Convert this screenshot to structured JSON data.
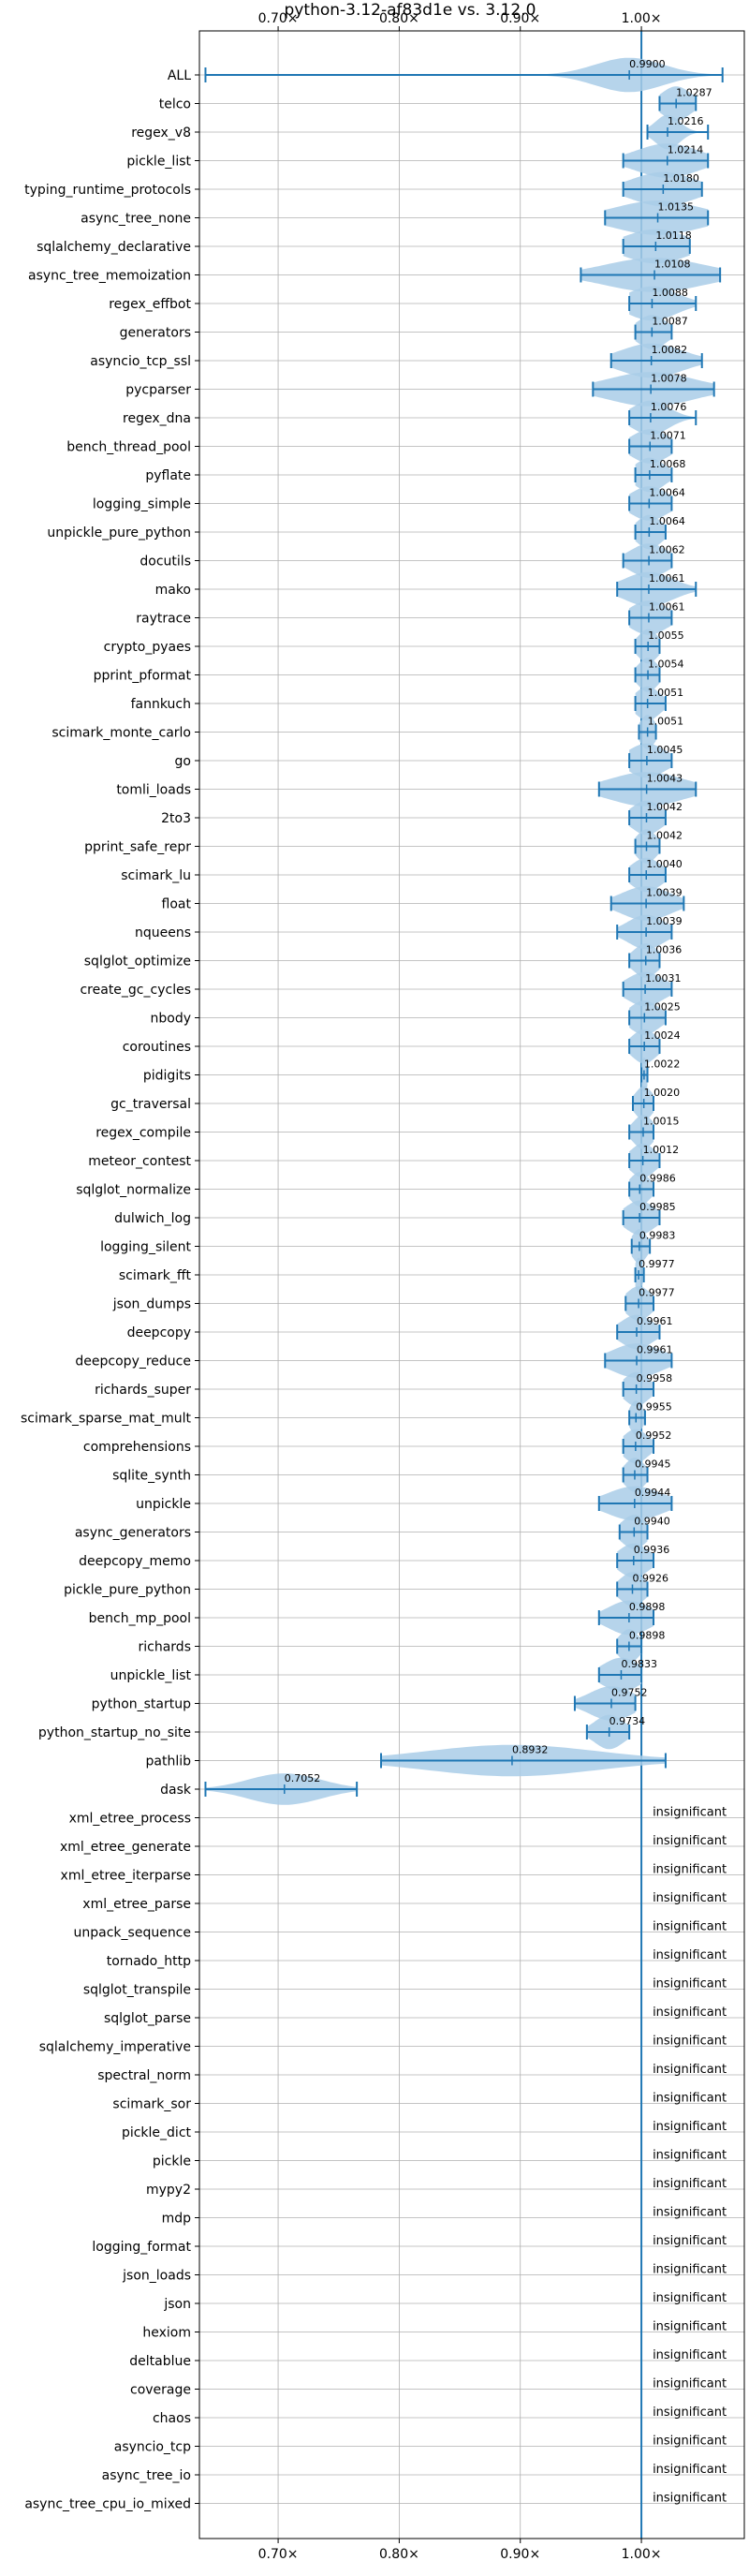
{
  "chart_data": {
    "type": "violin",
    "title": "python-3.12-af83d1e vs. 3.12.0",
    "xlabel": "",
    "ylabel": "",
    "xlim": [
      0.635,
      1.085
    ],
    "xticks": [
      0.7,
      0.8,
      0.9,
      1.0
    ],
    "xtick_labels": [
      "0.70×",
      "0.80×",
      "0.90×",
      "1.00×"
    ],
    "grid": true,
    "reference_line": 1.0,
    "colors": {
      "accent": "#1f77b4",
      "violin_fill": "#a9cce8",
      "grid": "#b0b0b0"
    },
    "insignificant_label": "insignificant",
    "benchmarks": [
      {
        "name": "ALL",
        "value": 0.99,
        "label": "0.9900",
        "min": 0.64,
        "max": 1.067,
        "spread": 0.028,
        "w": 0.6
      },
      {
        "name": "telco",
        "value": 1.0287,
        "label": "1.0287",
        "min": 1.015,
        "max": 1.045,
        "spread": 0.012,
        "w": 0.6
      },
      {
        "name": "regex_v8",
        "value": 1.0216,
        "label": "1.0216",
        "min": 1.005,
        "max": 1.055,
        "spread": 0.01,
        "w": 0.6
      },
      {
        "name": "pickle_list",
        "value": 1.0214,
        "label": "1.0214",
        "min": 0.985,
        "max": 1.055,
        "spread": 0.025,
        "w": 0.6
      },
      {
        "name": "typing_runtime_protocols",
        "value": 1.018,
        "label": "1.0180",
        "min": 0.985,
        "max": 1.05,
        "spread": 0.025,
        "w": 0.6
      },
      {
        "name": "async_tree_none",
        "value": 1.0135,
        "label": "1.0135",
        "min": 0.97,
        "max": 1.055,
        "spread": 0.035,
        "w": 0.6
      },
      {
        "name": "sqlalchemy_declarative",
        "value": 1.0118,
        "label": "1.0118",
        "min": 0.985,
        "max": 1.04,
        "spread": 0.025,
        "w": 0.6
      },
      {
        "name": "async_tree_memoization",
        "value": 1.0108,
        "label": "1.0108",
        "min": 0.95,
        "max": 1.065,
        "spread": 0.04,
        "w": 0.6
      },
      {
        "name": "regex_effbot",
        "value": 1.0088,
        "label": "1.0088",
        "min": 0.99,
        "max": 1.045,
        "spread": 0.02,
        "w": 0.6
      },
      {
        "name": "generators",
        "value": 1.0087,
        "label": "1.0087",
        "min": 0.995,
        "max": 1.025,
        "spread": 0.012,
        "w": 0.6
      },
      {
        "name": "asyncio_tcp_ssl",
        "value": 1.0082,
        "label": "1.0082",
        "min": 0.975,
        "max": 1.05,
        "spread": 0.025,
        "w": 0.6
      },
      {
        "name": "pycparser",
        "value": 1.0078,
        "label": "1.0078",
        "min": 0.96,
        "max": 1.06,
        "spread": 0.035,
        "w": 0.6
      },
      {
        "name": "regex_dna",
        "value": 1.0076,
        "label": "1.0076",
        "min": 0.99,
        "max": 1.045,
        "spread": 0.015,
        "w": 0.6
      },
      {
        "name": "bench_thread_pool",
        "value": 1.0071,
        "label": "1.0071",
        "min": 0.99,
        "max": 1.025,
        "spread": 0.015,
        "w": 0.6
      },
      {
        "name": "pyflate",
        "value": 1.0068,
        "label": "1.0068",
        "min": 0.995,
        "max": 1.025,
        "spread": 0.012,
        "w": 0.6
      },
      {
        "name": "logging_simple",
        "value": 1.0064,
        "label": "1.0064",
        "min": 0.99,
        "max": 1.025,
        "spread": 0.015,
        "w": 0.6
      },
      {
        "name": "unpickle_pure_python",
        "value": 1.0064,
        "label": "1.0064",
        "min": 0.995,
        "max": 1.02,
        "spread": 0.01,
        "w": 0.6
      },
      {
        "name": "docutils",
        "value": 1.0062,
        "label": "1.0062",
        "min": 0.985,
        "max": 1.025,
        "spread": 0.015,
        "w": 0.6
      },
      {
        "name": "mako",
        "value": 1.0061,
        "label": "1.0061",
        "min": 0.98,
        "max": 1.045,
        "spread": 0.02,
        "w": 0.6
      },
      {
        "name": "raytrace",
        "value": 1.0061,
        "label": "1.0061",
        "min": 0.99,
        "max": 1.025,
        "spread": 0.015,
        "w": 0.6
      },
      {
        "name": "crypto_pyaes",
        "value": 1.0055,
        "label": "1.0055",
        "min": 0.995,
        "max": 1.015,
        "spread": 0.008,
        "w": 0.6
      },
      {
        "name": "pprint_pformat",
        "value": 1.0054,
        "label": "1.0054",
        "min": 0.995,
        "max": 1.015,
        "spread": 0.008,
        "w": 0.6
      },
      {
        "name": "fannkuch",
        "value": 1.0051,
        "label": "1.0051",
        "min": 0.995,
        "max": 1.02,
        "spread": 0.01,
        "w": 0.6
      },
      {
        "name": "scimark_monte_carlo",
        "value": 1.0051,
        "label": "1.0051",
        "min": 0.998,
        "max": 1.012,
        "spread": 0.006,
        "w": 0.6
      },
      {
        "name": "go",
        "value": 1.0045,
        "label": "1.0045",
        "min": 0.99,
        "max": 1.025,
        "spread": 0.015,
        "w": 0.6
      },
      {
        "name": "tomli_loads",
        "value": 1.0043,
        "label": "1.0043",
        "min": 0.965,
        "max": 1.045,
        "spread": 0.03,
        "w": 0.6
      },
      {
        "name": "2to3",
        "value": 1.0042,
        "label": "1.0042",
        "min": 0.99,
        "max": 1.02,
        "spread": 0.012,
        "w": 0.6
      },
      {
        "name": "pprint_safe_repr",
        "value": 1.0042,
        "label": "1.0042",
        "min": 0.995,
        "max": 1.015,
        "spread": 0.008,
        "w": 0.6
      },
      {
        "name": "scimark_lu",
        "value": 1.004,
        "label": "1.0040",
        "min": 0.99,
        "max": 1.02,
        "spread": 0.012,
        "w": 0.6
      },
      {
        "name": "float",
        "value": 1.0039,
        "label": "1.0039",
        "min": 0.975,
        "max": 1.035,
        "spread": 0.02,
        "w": 0.6
      },
      {
        "name": "nqueens",
        "value": 1.0039,
        "label": "1.0039",
        "min": 0.98,
        "max": 1.025,
        "spread": 0.015,
        "w": 0.6
      },
      {
        "name": "sqlglot_optimize",
        "value": 1.0036,
        "label": "1.0036",
        "min": 0.99,
        "max": 1.015,
        "spread": 0.01,
        "w": 0.6
      },
      {
        "name": "create_gc_cycles",
        "value": 1.0031,
        "label": "1.0031",
        "min": 0.985,
        "max": 1.025,
        "spread": 0.015,
        "w": 0.6
      },
      {
        "name": "nbody",
        "value": 1.0025,
        "label": "1.0025",
        "min": 0.99,
        "max": 1.02,
        "spread": 0.012,
        "w": 0.6
      },
      {
        "name": "coroutines",
        "value": 1.0024,
        "label": "1.0024",
        "min": 0.99,
        "max": 1.015,
        "spread": 0.01,
        "w": 0.6
      },
      {
        "name": "pidigits",
        "value": 1.0022,
        "label": "1.0022",
        "min": 1.0,
        "max": 1.005,
        "spread": 0.003,
        "w": 0.6
      },
      {
        "name": "gc_traversal",
        "value": 1.002,
        "label": "1.0020",
        "min": 0.993,
        "max": 1.01,
        "spread": 0.007,
        "w": 0.6
      },
      {
        "name": "regex_compile",
        "value": 1.0015,
        "label": "1.0015",
        "min": 0.99,
        "max": 1.01,
        "spread": 0.008,
        "w": 0.6
      },
      {
        "name": "meteor_contest",
        "value": 1.0012,
        "label": "1.0012",
        "min": 0.99,
        "max": 1.015,
        "spread": 0.01,
        "w": 0.6
      },
      {
        "name": "sqlglot_normalize",
        "value": 0.9986,
        "label": "0.9986",
        "min": 0.99,
        "max": 1.01,
        "spread": 0.008,
        "w": 0.6
      },
      {
        "name": "dulwich_log",
        "value": 0.9985,
        "label": "0.9985",
        "min": 0.985,
        "max": 1.015,
        "spread": 0.012,
        "w": 0.6
      },
      {
        "name": "logging_silent",
        "value": 0.9983,
        "label": "0.9983",
        "min": 0.992,
        "max": 1.007,
        "spread": 0.006,
        "w": 0.6
      },
      {
        "name": "scimark_fft",
        "value": 0.9977,
        "label": "0.9977",
        "min": 0.995,
        "max": 1.002,
        "spread": 0.003,
        "w": 0.6
      },
      {
        "name": "json_dumps",
        "value": 0.9977,
        "label": "0.9977",
        "min": 0.987,
        "max": 1.01,
        "spread": 0.01,
        "w": 0.6
      },
      {
        "name": "deepcopy",
        "value": 0.9961,
        "label": "0.9961",
        "min": 0.98,
        "max": 1.015,
        "spread": 0.013,
        "w": 0.6
      },
      {
        "name": "deepcopy_reduce",
        "value": 0.9961,
        "label": "0.9961",
        "min": 0.97,
        "max": 1.025,
        "spread": 0.02,
        "w": 0.6
      },
      {
        "name": "richards_super",
        "value": 0.9958,
        "label": "0.9958",
        "min": 0.985,
        "max": 1.01,
        "spread": 0.01,
        "w": 0.6
      },
      {
        "name": "scimark_sparse_mat_mult",
        "value": 0.9955,
        "label": "0.9955",
        "min": 0.99,
        "max": 1.003,
        "spread": 0.005,
        "w": 0.6
      },
      {
        "name": "comprehensions",
        "value": 0.9952,
        "label": "0.9952",
        "min": 0.985,
        "max": 1.01,
        "spread": 0.01,
        "w": 0.6
      },
      {
        "name": "sqlite_synth",
        "value": 0.9945,
        "label": "0.9945",
        "min": 0.985,
        "max": 1.005,
        "spread": 0.008,
        "w": 0.6
      },
      {
        "name": "unpickle",
        "value": 0.9944,
        "label": "0.9944",
        "min": 0.965,
        "max": 1.025,
        "spread": 0.022,
        "w": 0.6
      },
      {
        "name": "async_generators",
        "value": 0.994,
        "label": "0.9940",
        "min": 0.982,
        "max": 1.005,
        "spread": 0.01,
        "w": 0.6
      },
      {
        "name": "deepcopy_memo",
        "value": 0.9936,
        "label": "0.9936",
        "min": 0.98,
        "max": 1.01,
        "spread": 0.012,
        "w": 0.6
      },
      {
        "name": "pickle_pure_python",
        "value": 0.9926,
        "label": "0.9926",
        "min": 0.98,
        "max": 1.005,
        "spread": 0.01,
        "w": 0.6
      },
      {
        "name": "bench_mp_pool",
        "value": 0.9898,
        "label": "0.9898",
        "min": 0.965,
        "max": 1.01,
        "spread": 0.017,
        "w": 0.6
      },
      {
        "name": "richards",
        "value": 0.9898,
        "label": "0.9898",
        "min": 0.98,
        "max": 1.0,
        "spread": 0.008,
        "w": 0.6
      },
      {
        "name": "unpickle_list",
        "value": 0.9833,
        "label": "0.9833",
        "min": 0.965,
        "max": 1.0,
        "spread": 0.015,
        "w": 0.6
      },
      {
        "name": "python_startup",
        "value": 0.9752,
        "label": "0.9752",
        "min": 0.945,
        "max": 0.995,
        "spread": 0.018,
        "w": 0.6
      },
      {
        "name": "python_startup_no_site",
        "value": 0.9734,
        "label": "0.9734",
        "min": 0.955,
        "max": 0.99,
        "spread": 0.012,
        "w": 0.6
      },
      {
        "name": "pathlib",
        "value": 0.8932,
        "label": "0.8932",
        "min": 0.785,
        "max": 1.02,
        "spread": 0.07,
        "w": 0.55
      },
      {
        "name": "dask",
        "value": 0.7052,
        "label": "0.7052",
        "min": 0.64,
        "max": 0.765,
        "spread": 0.03,
        "w": 0.55
      },
      {
        "name": "xml_etree_process",
        "insignificant": true
      },
      {
        "name": "xml_etree_generate",
        "insignificant": true
      },
      {
        "name": "xml_etree_iterparse",
        "insignificant": true
      },
      {
        "name": "xml_etree_parse",
        "insignificant": true
      },
      {
        "name": "unpack_sequence",
        "insignificant": true
      },
      {
        "name": "tornado_http",
        "insignificant": true
      },
      {
        "name": "sqlglot_transpile",
        "insignificant": true
      },
      {
        "name": "sqlglot_parse",
        "insignificant": true
      },
      {
        "name": "sqlalchemy_imperative",
        "insignificant": true
      },
      {
        "name": "spectral_norm",
        "insignificant": true
      },
      {
        "name": "scimark_sor",
        "insignificant": true
      },
      {
        "name": "pickle_dict",
        "insignificant": true
      },
      {
        "name": "pickle",
        "insignificant": true
      },
      {
        "name": "mypy2",
        "insignificant": true
      },
      {
        "name": "mdp",
        "insignificant": true
      },
      {
        "name": "logging_format",
        "insignificant": true
      },
      {
        "name": "json_loads",
        "insignificant": true
      },
      {
        "name": "json",
        "insignificant": true
      },
      {
        "name": "hexiom",
        "insignificant": true
      },
      {
        "name": "deltablue",
        "insignificant": true
      },
      {
        "name": "coverage",
        "insignificant": true
      },
      {
        "name": "chaos",
        "insignificant": true
      },
      {
        "name": "asyncio_tcp",
        "insignificant": true
      },
      {
        "name": "async_tree_io",
        "insignificant": true
      },
      {
        "name": "async_tree_cpu_io_mixed",
        "insignificant": true
      }
    ]
  }
}
